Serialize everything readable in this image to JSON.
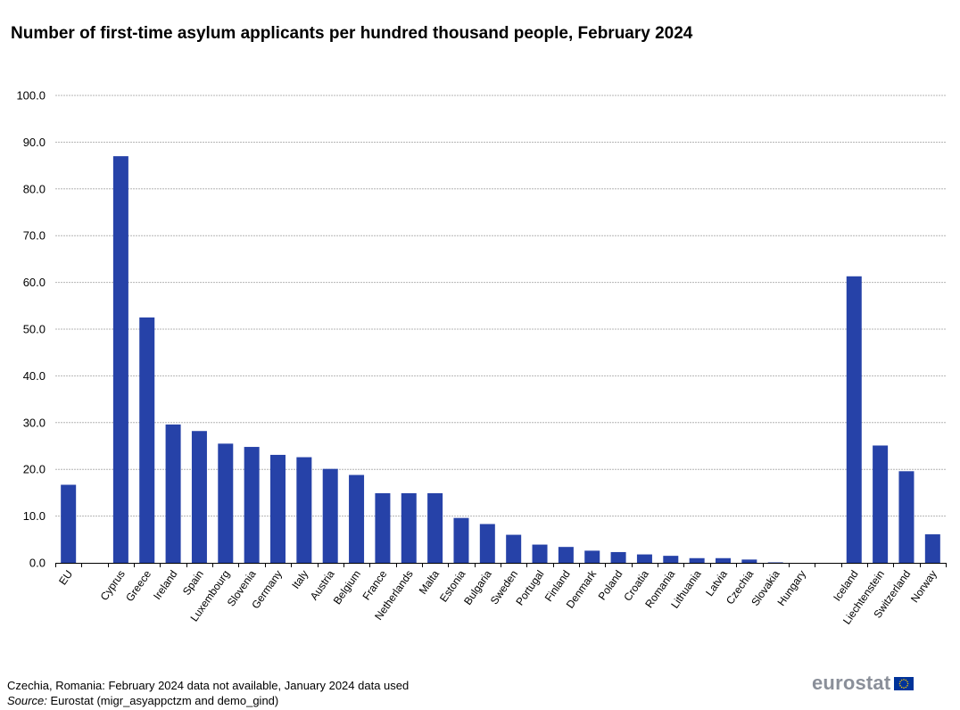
{
  "title": "Number of first-time asylum applicants per hundred thousand people, February 2024",
  "footnote": {
    "note": "Czechia, Romania: February 2024 data not available, January 2024 data used",
    "source_label": "Source:",
    "source_text": "Eurostat (migr_asyappctzm and demo_gind)"
  },
  "logo": {
    "text": "eurostat",
    "flag_icon": "eu-flag-icon",
    "flag_color": "#003399",
    "star_color": "#ffcc00"
  },
  "colors": {
    "bar": "#2642a8",
    "grid": "#b4b4b4",
    "axis": "#000000"
  },
  "chart_data": {
    "type": "bar",
    "title": "Number of first-time asylum applicants per hundred thousand people, February 2024",
    "xlabel": "",
    "ylabel": "",
    "ylim": [
      0,
      100
    ],
    "yticks": [
      "0.0",
      "10.0",
      "20.0",
      "30.0",
      "40.0",
      "50.0",
      "60.0",
      "70.0",
      "80.0",
      "90.0",
      "100.0"
    ],
    "grid": true,
    "legend": "none",
    "categories": [
      "EU",
      "",
      "Cyprus",
      "Greece",
      "Ireland",
      "Spain",
      "Luxembourg",
      "Slovenia",
      "Germany",
      "Italy",
      "Austria",
      "Belgium",
      "France",
      "Netherlands",
      "Malta",
      "Estonia",
      "Bulgaria",
      "Sweden",
      "Portugal",
      "Finland",
      "Denmark",
      "Poland",
      "Croatia",
      "Romania",
      "Lithuania",
      "Latvia",
      "Czechia",
      "Slovakia",
      "Hungary",
      "",
      "Iceland",
      "Liechtenstein",
      "Switzerland",
      "Norway"
    ],
    "values": [
      16.7,
      null,
      87.0,
      52.5,
      29.6,
      28.2,
      25.5,
      24.8,
      23.1,
      22.6,
      20.1,
      18.8,
      14.9,
      14.9,
      14.9,
      9.6,
      8.3,
      6.0,
      3.9,
      3.4,
      2.6,
      2.3,
      1.8,
      1.5,
      1.0,
      1.0,
      0.7,
      0.1,
      0.0,
      null,
      61.3,
      25.1,
      19.6,
      6.1
    ]
  }
}
